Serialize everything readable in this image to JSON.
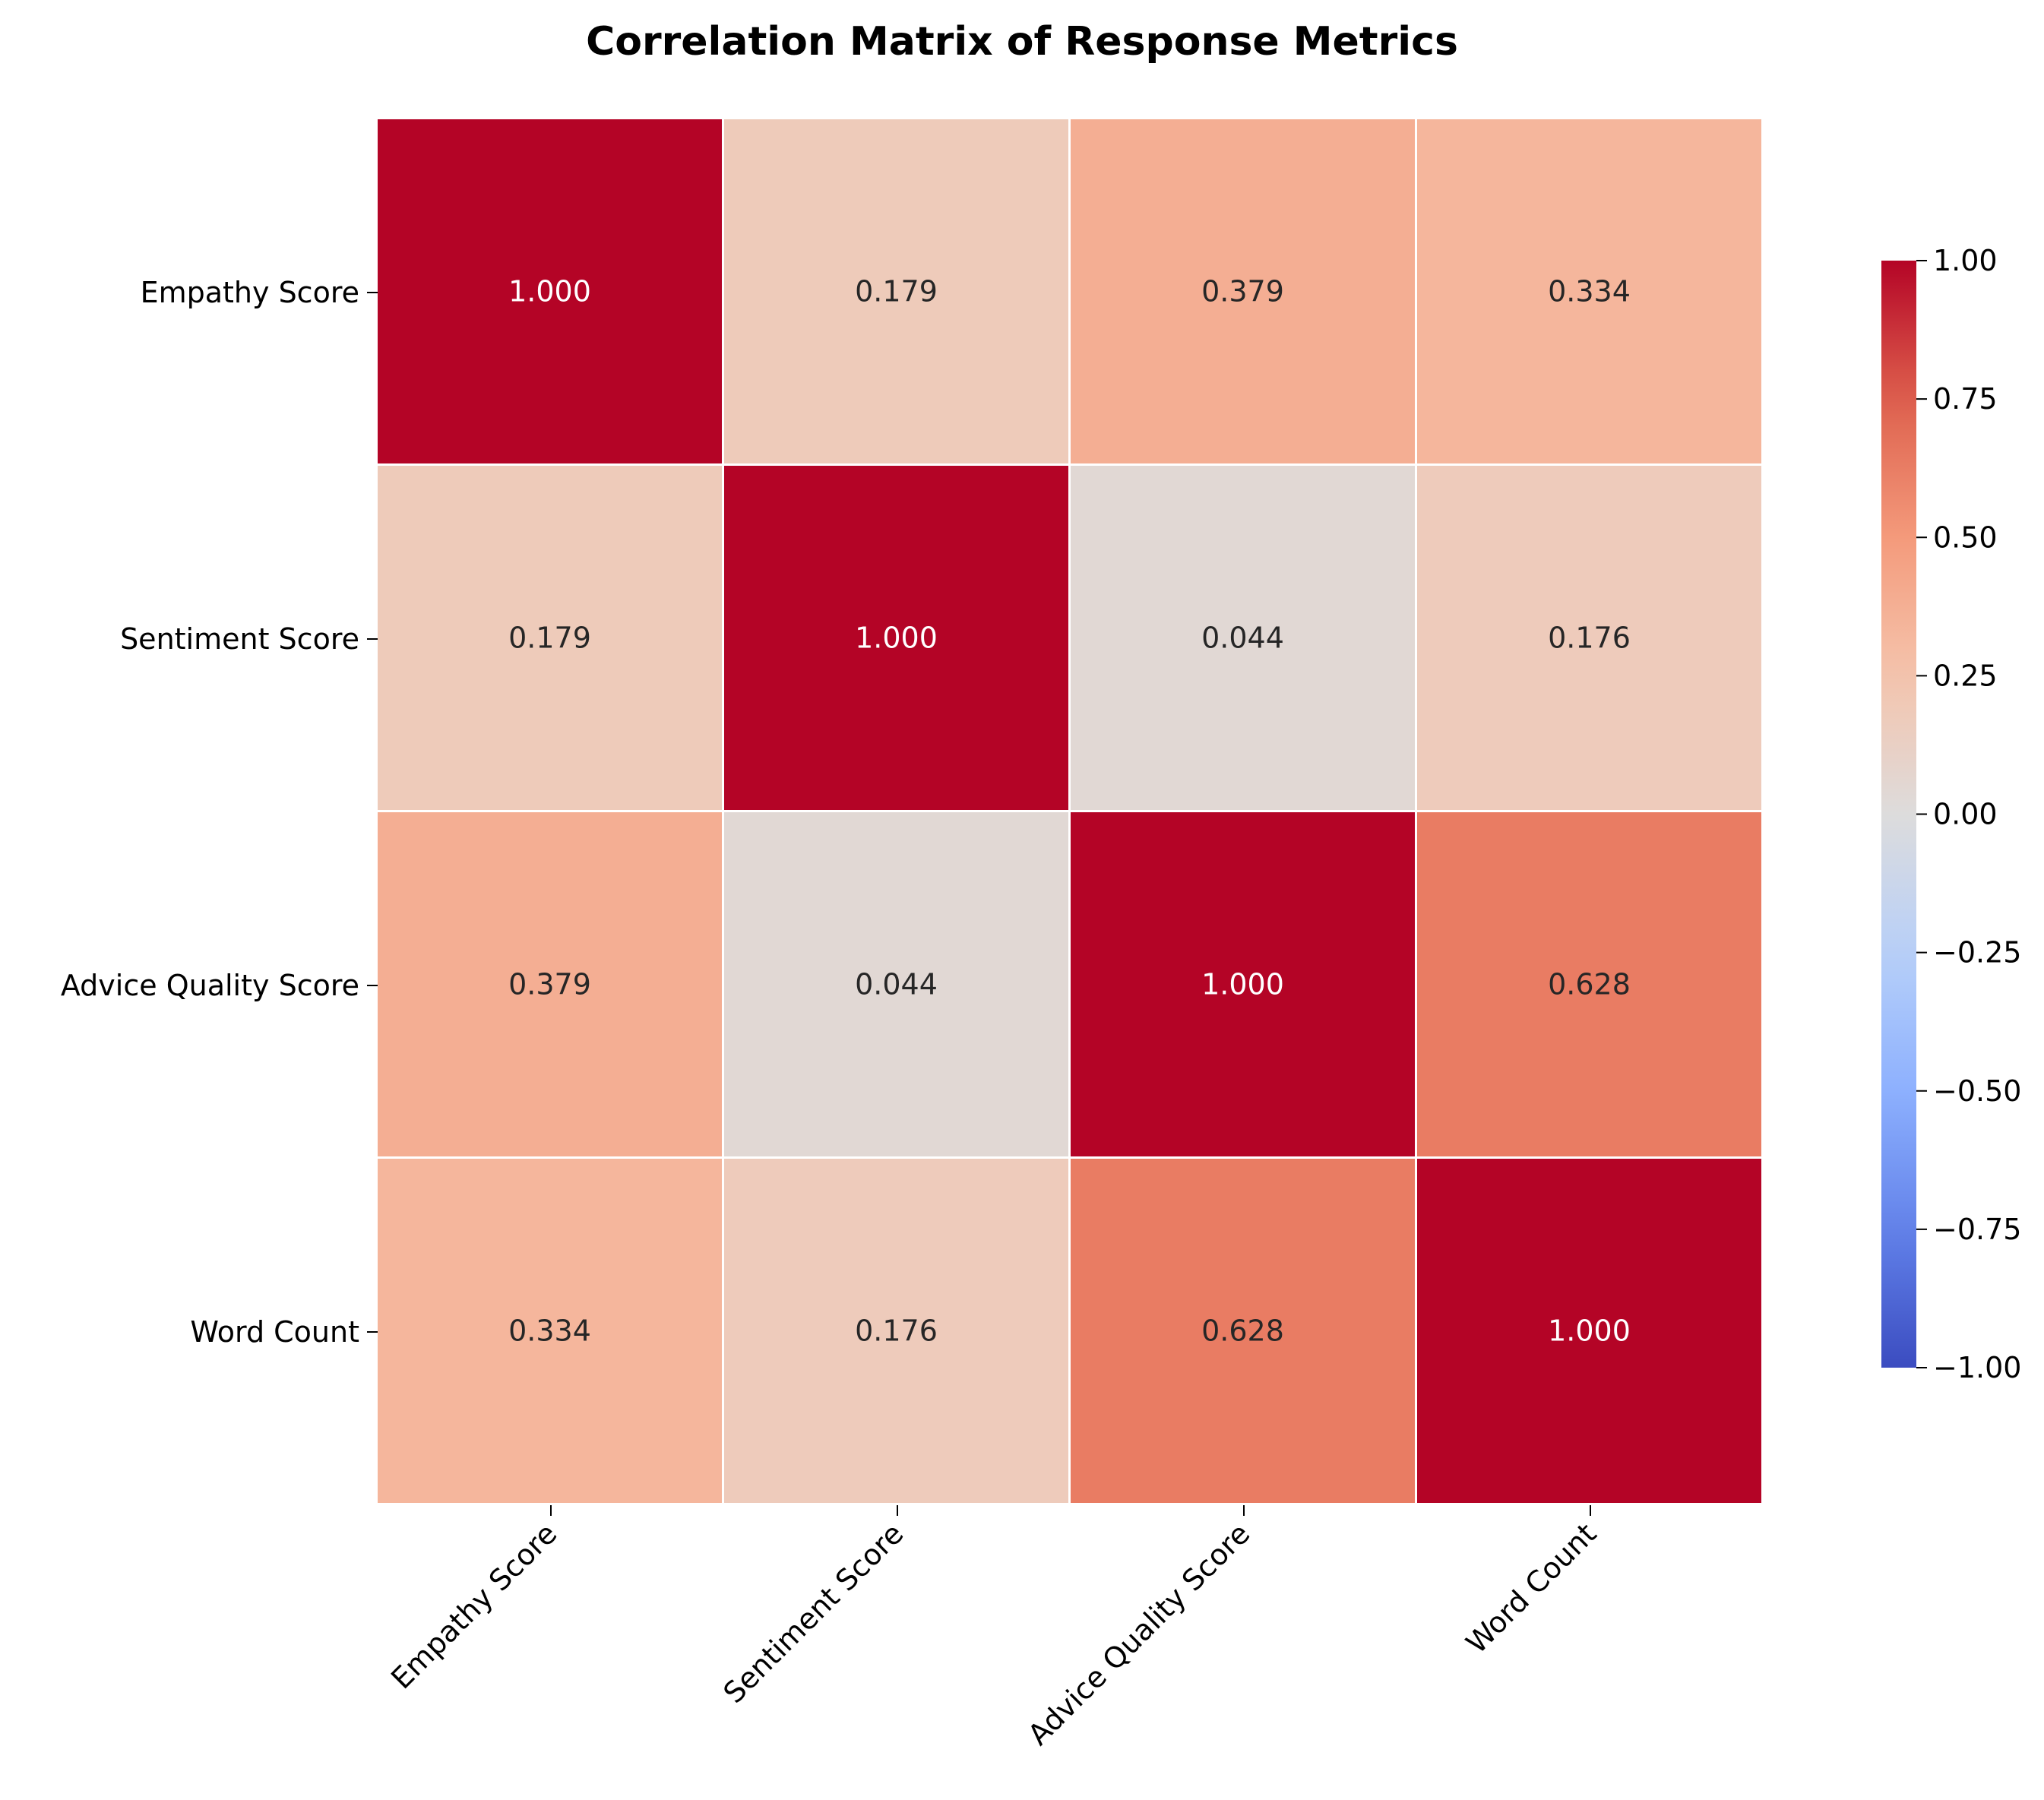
{
  "chart_data": {
    "type": "heatmap",
    "title": "Correlation Matrix of Response Metrics",
    "xlabel": "",
    "ylabel": "",
    "row_labels": [
      "Empathy Score",
      "Sentiment Score",
      "Advice Quality Score",
      "Word Count"
    ],
    "col_labels": [
      "Empathy Score",
      "Sentiment Score",
      "Advice Quality Score",
      "Word Count"
    ],
    "values": [
      [
        1.0,
        0.179,
        0.379,
        0.334
      ],
      [
        0.179,
        1.0,
        0.044,
        0.176
      ],
      [
        0.379,
        0.044,
        1.0,
        0.628
      ],
      [
        0.334,
        0.176,
        0.628,
        1.0
      ]
    ],
    "value_format": "3 decimals",
    "colormap": "coolwarm",
    "vmin": -1.0,
    "vmax": 1.0,
    "colorbar_ticks": [
      1.0,
      0.75,
      0.5,
      0.25,
      0.0,
      -0.25,
      -0.5,
      -0.75,
      -1.0
    ],
    "colorbar_tick_labels": [
      "1.00",
      "0.75",
      "0.50",
      "0.25",
      "0.00",
      "−0.25",
      "−0.50",
      "−0.75",
      "−1.00"
    ],
    "colorbar_position": "right",
    "grid": false
  }
}
